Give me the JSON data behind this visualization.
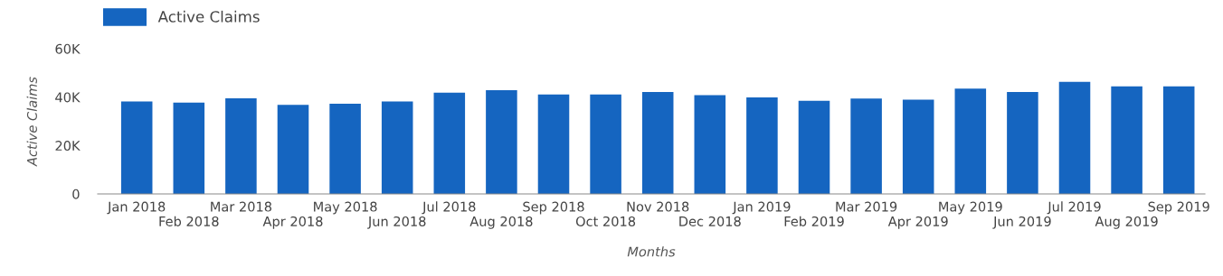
{
  "chart_data": {
    "type": "bar",
    "xlabel": "Months",
    "ylabel": "Active Claims",
    "categories": [
      "Jan 2018",
      "Feb 2018",
      "Mar 2018",
      "Apr 2018",
      "May 2018",
      "Jun 2018",
      "Jul 2018",
      "Aug 2018",
      "Sep 2018",
      "Oct 2018",
      "Nov 2018",
      "Dec 2018",
      "Jan 2019",
      "Feb 2019",
      "Mar 2019",
      "Apr 2019",
      "May 2019",
      "Jun 2019",
      "Jul 2019",
      "Aug 2019",
      "Sep 2019"
    ],
    "series": [
      {
        "name": "Active Claims",
        "color": "#1565c0",
        "values": [
          38200,
          37700,
          39500,
          36800,
          37300,
          38200,
          41800,
          42900,
          41100,
          41100,
          42100,
          40800,
          39900,
          38500,
          39400,
          38900,
          43500,
          42100,
          46300,
          44400,
          44400
        ]
      }
    ],
    "ylim": [
      0,
      60000
    ],
    "yticks": [
      0,
      {
        "value": 20000,
        "label": "20K"
      },
      {
        "value": 40000,
        "label": "40K"
      },
      {
        "value": 60000,
        "label": "60K"
      }
    ],
    "grid": false,
    "legend": "top left"
  }
}
